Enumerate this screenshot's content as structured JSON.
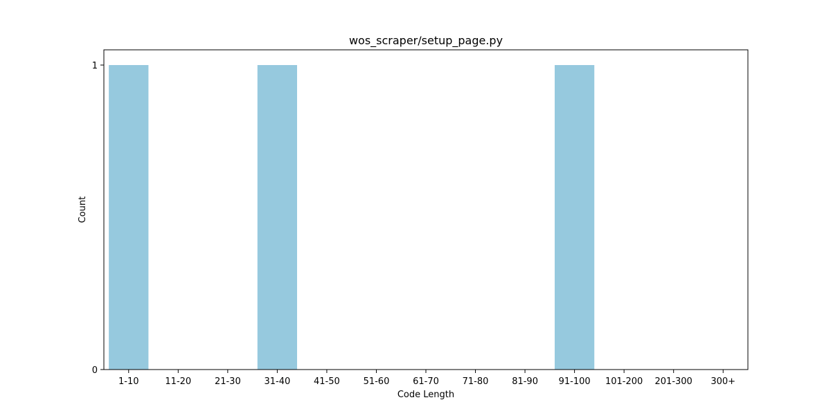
{
  "chart_data": {
    "type": "bar",
    "title": "wos_scraper/setup_page.py",
    "xlabel": "Code Length",
    "ylabel": "Count",
    "categories": [
      "1-10",
      "11-20",
      "21-30",
      "31-40",
      "41-50",
      "51-60",
      "61-70",
      "71-80",
      "81-90",
      "91-100",
      "101-200",
      "201-300",
      "300+"
    ],
    "values": [
      1,
      0,
      0,
      1,
      0,
      0,
      0,
      0,
      0,
      1,
      0,
      0,
      0
    ],
    "ylim": [
      0,
      1
    ],
    "yticks": [
      "0",
      "1"
    ],
    "grid": false,
    "legend": "none",
    "bar_color": "#96c9de"
  }
}
